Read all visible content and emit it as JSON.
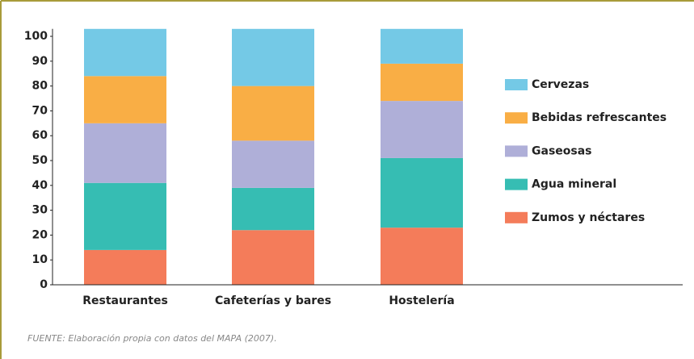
{
  "chart_data": {
    "type": "stacked_bar",
    "categories": [
      "Restaurantes",
      "Cafeterías y bares",
      "Hostelería"
    ],
    "series": [
      {
        "name": "Zumos y néctares",
        "color": "#f47c5a",
        "values": [
          14,
          22,
          23
        ]
      },
      {
        "name": "Agua mineral",
        "color": "#36bdb3",
        "values": [
          27,
          17,
          28
        ]
      },
      {
        "name": "Gaseosas",
        "color": "#afafd8",
        "values": [
          24,
          19,
          23
        ]
      },
      {
        "name": "Bebidas refrescantes",
        "color": "#f9ae45",
        "values": [
          19,
          22,
          15
        ]
      },
      {
        "name": "Cervezas",
        "color": "#74c9e6",
        "values": [
          19,
          23,
          14
        ]
      }
    ],
    "ylim": [
      0,
      103
    ],
    "yticks": [
      0,
      10,
      20,
      30,
      40,
      50,
      60,
      70,
      80,
      90,
      100
    ],
    "legend": "right",
    "source": "FUENTE: Elaboración propia con datos del MAPA (2007)."
  }
}
